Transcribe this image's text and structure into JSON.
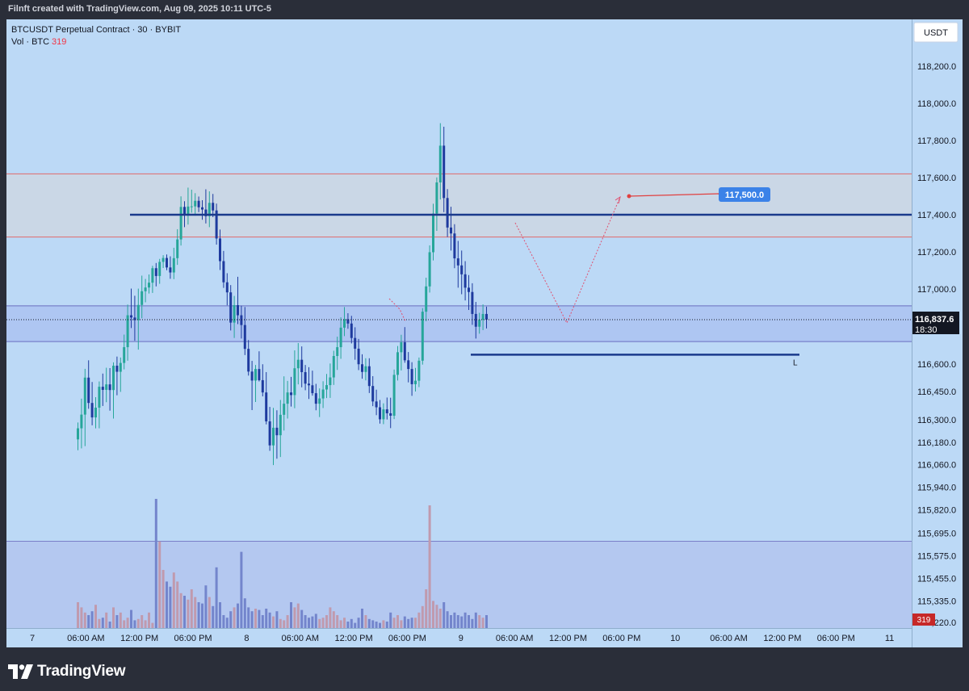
{
  "header": {
    "attribution": "Filnft created with TradingView.com, Aug 09, 2025 10:11 UTC-5"
  },
  "legend": {
    "symbol": "BTCUSDT Perpetual Contract · 30 · BYBIT",
    "vol_label": "Vol · BTC",
    "vol_value": "319"
  },
  "currency_button": "USDT",
  "footer": {
    "brand": "TradingView"
  },
  "colors": {
    "bull": "#26a69a",
    "bear": "#1e3a9e",
    "background": "#bcd9f6",
    "vol_bull": "#c09aae",
    "vol_bear": "#7385cc"
  },
  "chart_data": {
    "type": "candlestick",
    "symbol": "BTCUSDT",
    "interval": "30",
    "exchange": "BYBIT",
    "y_ticks": [
      "118,200.0",
      "118,000.0",
      "117,800.0",
      "117,600.0",
      "117,400.0",
      "117,200.0",
      "117,000.0",
      "116,600.0",
      "116,450.0",
      "116,300.0",
      "116,180.0",
      "116,060.0",
      "115,940.0",
      "115,820.0",
      "115,695.0",
      "115,575.0",
      "115,455.0",
      "115,335.0",
      "115,220.0"
    ],
    "x_ticks": [
      "7",
      "06:00 AM",
      "12:00 PM",
      "06:00 PM",
      "8",
      "06:00 AM",
      "12:00 PM",
      "06:00 PM",
      "9",
      "06:00 AM",
      "12:00 PM",
      "06:00 PM",
      "10",
      "06:00 AM",
      "12:00 PM",
      "06:00 PM",
      "11"
    ],
    "last_price": "116,837.6",
    "countdown": "18:30",
    "volume_last": "319",
    "resistance_level": 117400,
    "resistance_zone": [
      117280,
      117620
    ],
    "demand_zone": [
      116720,
      116910
    ],
    "support_line": 116650,
    "support_label": "L",
    "target_label": "117,500.0",
    "projection": [
      "high",
      "pullback to ~116,800",
      "rally to 117,500"
    ],
    "candles": [
      [
        116195,
        116285,
        116137,
        116254
      ],
      [
        116254,
        116412,
        116147,
        116327
      ],
      [
        116327,
        116574,
        116159,
        116526
      ],
      [
        116526,
        116620,
        116358,
        116389
      ],
      [
        116389,
        116502,
        116270,
        116312
      ],
      [
        116312,
        116420,
        116254,
        116364
      ],
      [
        116364,
        116505,
        116254,
        116476
      ],
      [
        116476,
        116548,
        116373,
        116459
      ],
      [
        116459,
        116580,
        116393,
        116489
      ],
      [
        116489,
        116578,
        116348,
        116458
      ],
      [
        116458,
        116609,
        116306,
        116591
      ],
      [
        116591,
        116640,
        116430,
        116558
      ],
      [
        116558,
        116635,
        116448,
        116606
      ],
      [
        116606,
        116757,
        116571,
        116690
      ],
      [
        116690,
        116917,
        116618,
        116860
      ],
      [
        116860,
        117002,
        116792,
        116848
      ],
      [
        116848,
        116964,
        116724,
        116834
      ],
      [
        116834,
        117002,
        116677,
        116915
      ],
      [
        116915,
        117072,
        116844,
        116988
      ],
      [
        116988,
        117054,
        116929,
        117008
      ],
      [
        117008,
        117078,
        116976,
        117034
      ],
      [
        117034,
        117125,
        116979,
        117112
      ],
      [
        117112,
        117140,
        117014,
        117070
      ],
      [
        117070,
        117162,
        117028,
        117146
      ],
      [
        117146,
        117182,
        117113,
        117167
      ],
      [
        117167,
        117186,
        117101,
        117116
      ],
      [
        117116,
        117176,
        117055,
        117089
      ],
      [
        117089,
        117222,
        117053,
        117166
      ],
      [
        117166,
        117322,
        117130,
        117267
      ],
      [
        117267,
        117499,
        117234,
        117442
      ],
      [
        117442,
        117473,
        117333,
        117401
      ],
      [
        117401,
        117546,
        117347,
        117444
      ],
      [
        117444,
        117535,
        117411,
        117445
      ],
      [
        117445,
        117516,
        117395,
        117475
      ],
      [
        117475,
        117498,
        117414,
        117440
      ],
      [
        117440,
        117478,
        117373,
        117428
      ],
      [
        117428,
        117537,
        117353,
        117392
      ],
      [
        117392,
        117526,
        117333,
        117464
      ],
      [
        117464,
        117512,
        117387,
        117423
      ],
      [
        117423,
        117460,
        117239,
        117272
      ],
      [
        117272,
        117320,
        117102,
        117150
      ],
      [
        117150,
        117205,
        117006,
        117036
      ],
      [
        117036,
        117085,
        116913,
        116982
      ],
      [
        116982,
        117021,
        116779,
        116821
      ],
      [
        116821,
        116963,
        116739,
        116914
      ],
      [
        116914,
        117066,
        116813,
        116860
      ],
      [
        116860,
        116911,
        116736,
        116808
      ],
      [
        116808,
        116904,
        116648,
        116681
      ],
      [
        116681,
        116728,
        116537,
        116559
      ],
      [
        116559,
        116617,
        116351,
        116510
      ],
      [
        116510,
        116595,
        116394,
        116573
      ],
      [
        116573,
        116668,
        116505,
        116512
      ],
      [
        116512,
        116599,
        116424,
        116445
      ],
      [
        116445,
        116556,
        116275,
        116291
      ],
      [
        116291,
        116368,
        116134,
        116163
      ],
      [
        116163,
        116363,
        116058,
        116257
      ],
      [
        116257,
        116350,
        116092,
        116217
      ],
      [
        116217,
        116405,
        116101,
        116326
      ],
      [
        116326,
        116533,
        116242,
        116385
      ],
      [
        116385,
        116508,
        116306,
        116445
      ],
      [
        116445,
        116530,
        116370,
        116431
      ],
      [
        116431,
        116673,
        116361,
        116577
      ],
      [
        116577,
        116712,
        116489,
        116623
      ],
      [
        116623,
        116694,
        116473,
        116556
      ],
      [
        116556,
        116595,
        116457,
        116493
      ],
      [
        116493,
        116583,
        116410,
        116484
      ],
      [
        116484,
        116564,
        116428,
        116441
      ],
      [
        116441,
        116492,
        116350,
        116385
      ],
      [
        116385,
        116467,
        116314,
        116413
      ],
      [
        116413,
        116506,
        116362,
        116461
      ],
      [
        116461,
        116546,
        116415,
        116485
      ],
      [
        116485,
        116603,
        116416,
        116527
      ],
      [
        116527,
        116671,
        116486,
        116643
      ],
      [
        116643,
        116746,
        116568,
        116690
      ],
      [
        116690,
        116849,
        116628,
        116794
      ],
      [
        116794,
        116904,
        116749,
        116839
      ],
      [
        116839,
        116871,
        116788,
        116816
      ],
      [
        116816,
        116857,
        116710,
        116739
      ],
      [
        116739,
        116796,
        116623,
        116682
      ],
      [
        116682,
        116734,
        116567,
        116599
      ],
      [
        116599,
        116652,
        116520,
        116557
      ],
      [
        116557,
        116631,
        116511,
        116588
      ],
      [
        116588,
        116631,
        116442,
        116480
      ],
      [
        116480,
        116534,
        116372,
        116397
      ],
      [
        116397,
        116460,
        116324,
        116366
      ],
      [
        116366,
        116405,
        116279,
        116302
      ],
      [
        116302,
        116387,
        116276,
        116355
      ],
      [
        116355,
        116418,
        116301,
        116334
      ],
      [
        116334,
        116417,
        116255,
        116321
      ],
      [
        116321,
        116570,
        116303,
        116541
      ],
      [
        116541,
        116696,
        116510,
        116663
      ],
      [
        116663,
        116756,
        116565,
        116716
      ],
      [
        116716,
        116797,
        116607,
        116620
      ],
      [
        116620,
        116664,
        116500,
        116573
      ],
      [
        116573,
        116610,
        116427,
        116490
      ],
      [
        116490,
        116579,
        116450,
        116509
      ],
      [
        116509,
        116635,
        116474,
        116618
      ],
      [
        116618,
        116898,
        116597,
        116879
      ],
      [
        116879,
        117061,
        116828,
        117014
      ],
      [
        117014,
        117235,
        116981,
        117198
      ],
      [
        117198,
        117459,
        117154,
        117406
      ],
      [
        117406,
        117601,
        117313,
        117574
      ],
      [
        117574,
        117893,
        117482,
        117772
      ],
      [
        117772,
        117874,
        117414,
        117490
      ],
      [
        117490,
        117538,
        117280,
        117331
      ],
      [
        117331,
        117443,
        117207,
        117299
      ],
      [
        117299,
        117349,
        117112,
        117165
      ],
      [
        117165,
        117259,
        117007,
        117127
      ],
      [
        117127,
        117207,
        116972,
        117079
      ],
      [
        117079,
        117150,
        116939,
        117007
      ],
      [
        117007,
        117075,
        116888,
        116984
      ],
      [
        116984,
        117031,
        116809,
        116867
      ],
      [
        116867,
        116931,
        116736,
        116799
      ],
      [
        116799,
        116873,
        116762,
        116836
      ],
      [
        116836,
        116918,
        116781,
        116867
      ],
      [
        116867,
        116906,
        116790,
        116837
      ]
    ],
    "volume": [
      0.2,
      0.16,
      0.12,
      0.1,
      0.13,
      0.18,
      0.07,
      0.08,
      0.12,
      0.05,
      0.16,
      0.1,
      0.12,
      0.06,
      0.08,
      0.14,
      0.06,
      0.07,
      0.1,
      0.06,
      0.12,
      0.04,
      1.0,
      0.67,
      0.45,
      0.36,
      0.32,
      0.43,
      0.36,
      0.27,
      0.25,
      0.22,
      0.3,
      0.24,
      0.2,
      0.19,
      0.33,
      0.24,
      0.17,
      0.47,
      0.2,
      0.1,
      0.08,
      0.13,
      0.16,
      0.19,
      0.59,
      0.23,
      0.16,
      0.13,
      0.15,
      0.14,
      0.1,
      0.15,
      0.12,
      0.09,
      0.13,
      0.07,
      0.06,
      0.1,
      0.2,
      0.16,
      0.19,
      0.14,
      0.1,
      0.08,
      0.09,
      0.11,
      0.07,
      0.08,
      0.1,
      0.16,
      0.13,
      0.1,
      0.06,
      0.08,
      0.05,
      0.07,
      0.04,
      0.08,
      0.15,
      0.1,
      0.07,
      0.06,
      0.05,
      0.04,
      0.06,
      0.05,
      0.12,
      0.08,
      0.1,
      0.06,
      0.09,
      0.07,
      0.08,
      0.08,
      0.12,
      0.17,
      0.3,
      0.95,
      0.21,
      0.18,
      0.15,
      0.2,
      0.13,
      0.1,
      0.12,
      0.1,
      0.09,
      0.12,
      0.1,
      0.07,
      0.12,
      0.1,
      0.08,
      0.1
    ]
  }
}
